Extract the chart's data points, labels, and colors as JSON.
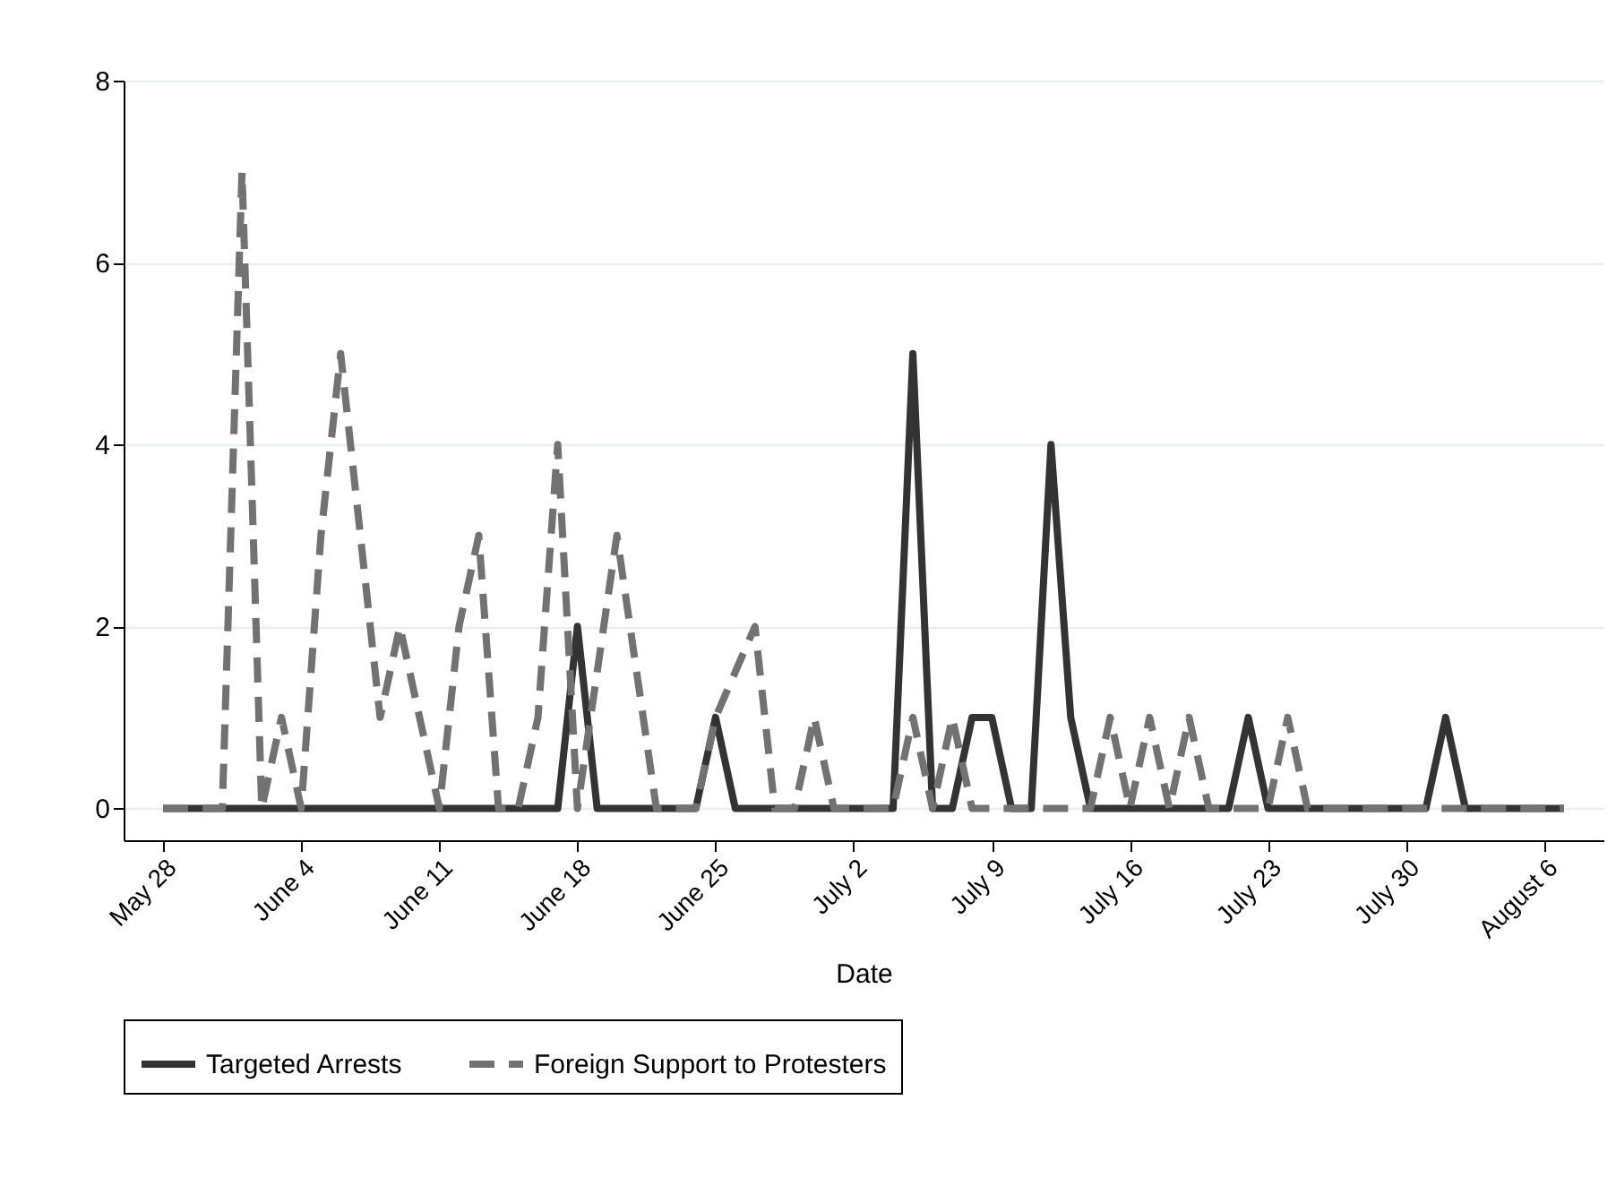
{
  "chart_data": {
    "type": "line",
    "xlabel": "Date",
    "x": [
      "--05-28",
      "--05-29",
      "--05-30",
      "--05-31",
      "--06-01",
      "--06-02",
      "--06-03",
      "--06-04",
      "--06-05",
      "--06-06",
      "--06-07",
      "--06-08",
      "--06-09",
      "--06-10",
      "--06-11",
      "--06-12",
      "--06-13",
      "--06-14",
      "--06-15",
      "--06-16",
      "--06-17",
      "--06-18",
      "--06-19",
      "--06-20",
      "--06-21",
      "--06-22",
      "--06-23",
      "--06-24",
      "--06-25",
      "--06-26",
      "--06-27",
      "--06-28",
      "--06-29",
      "--06-30",
      "--07-01",
      "--07-02",
      "--07-03",
      "--07-04",
      "--07-05",
      "--07-06",
      "--07-07",
      "--07-08",
      "--07-09",
      "--07-10",
      "--07-11",
      "--07-12",
      "--07-13",
      "--07-14",
      "--07-15",
      "--07-16",
      "--07-17",
      "--07-18",
      "--07-19",
      "--07-20",
      "--07-21",
      "--07-22",
      "--07-23",
      "--07-24",
      "--07-25",
      "--07-26",
      "--07-27",
      "--07-28",
      "--07-29",
      "--07-30",
      "--07-31",
      "--08-01",
      "--08-02",
      "--08-03",
      "--08-04",
      "--08-05",
      "--08-06",
      "--08-07"
    ],
    "series": [
      {
        "name": "Targeted Arrests",
        "color": "#333333",
        "line_style": "solid",
        "values": [
          0,
          0,
          0,
          0,
          0,
          0,
          0,
          0,
          0,
          0,
          0,
          0,
          0,
          0,
          0,
          0,
          0,
          0,
          0,
          0,
          0,
          2,
          0,
          0,
          0,
          0,
          0,
          0,
          1,
          0,
          0,
          0,
          0,
          0,
          0,
          0,
          0,
          0,
          5,
          0,
          0,
          1,
          1,
          0,
          0,
          4,
          1,
          0,
          0,
          0,
          0,
          0,
          0,
          0,
          0,
          1,
          0,
          0,
          0,
          0,
          0,
          0,
          0,
          0,
          0,
          1,
          0,
          0,
          0,
          0,
          0,
          0
        ]
      },
      {
        "name": "Foreign Support to Protesters",
        "color": "#727272",
        "line_style": "dashed",
        "values": [
          0,
          0,
          0,
          0,
          7,
          0,
          1,
          0,
          3,
          5,
          3,
          1,
          2,
          1,
          0,
          2,
          3,
          0,
          0,
          1,
          4,
          0,
          1.5,
          3,
          1.5,
          0,
          0,
          0,
          1,
          1.5,
          2,
          0,
          0,
          1,
          0,
          0,
          0,
          0,
          1,
          0,
          1,
          0,
          0,
          0,
          0,
          0,
          0,
          0,
          1,
          0,
          1,
          0,
          1,
          0,
          0,
          0,
          0,
          1,
          0,
          0,
          0,
          0,
          0,
          0,
          0,
          0,
          0,
          0,
          0,
          0,
          0,
          0
        ]
      }
    ],
    "xlim": [
      "--05-26",
      "--08-09"
    ],
    "xticks": [
      {
        "value": "--05-28",
        "label": "May 28"
      },
      {
        "value": "--06-04",
        "label": "June 4"
      },
      {
        "value": "--06-11",
        "label": "June 11"
      },
      {
        "value": "--06-18",
        "label": "June 18"
      },
      {
        "value": "--06-25",
        "label": "June 25"
      },
      {
        "value": "--07-02",
        "label": "July 2"
      },
      {
        "value": "--07-09",
        "label": "July 9"
      },
      {
        "value": "--07-16",
        "label": "July 16"
      },
      {
        "value": "--07-23",
        "label": "July 23"
      },
      {
        "value": "--07-30",
        "label": "July 30"
      },
      {
        "value": "--08-06",
        "label": "August 6"
      }
    ],
    "ylim": [
      -0.35,
      8
    ],
    "yticks": [
      0,
      2,
      4,
      6,
      8
    ],
    "grid": "y",
    "legend": "bottom"
  }
}
